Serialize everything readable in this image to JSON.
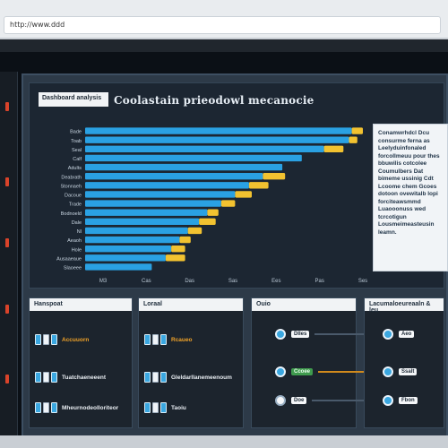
{
  "browser": {
    "url_text": "http://www.ddd"
  },
  "app": {
    "tag_label": "Dashboard analysis",
    "chart_title": "Coolastain prieodowl mecanocie",
    "note_text": "Conamwrhdcl Dcu consurme ferna as Leelyduinfonaled forcollmeuu pour thes bbuwilis cotcolee Coumulbers Dat bimeme ussinig Cdt Lcoome chem Gcoes dotoon ovewitalb lopi forciteawsmmd Luaooonuss wed tcrcotigun Lousmeimeasteusin leamn."
  },
  "chart_data": {
    "type": "bar",
    "orientation": "horizontal",
    "title": "Coolastain prieodowl mecanocie",
    "categories": [
      "Bade",
      "Toab",
      "Seal",
      "Calf",
      "Adults",
      "Deabrath",
      "Stonnaeh",
      "Dacoue",
      "Trade",
      "Bodnoeld",
      "Dale",
      "Nl",
      "Aeaoh",
      "Hole",
      "Ausaaeaue",
      "Slaoeee"
    ],
    "xlim": [
      0,
      100
    ],
    "ticks": [
      "M3",
      "Cas",
      "Das",
      "Sas",
      "Ees",
      "Pas",
      "Ses"
    ],
    "series": [
      {
        "values": [
          96,
          95,
          86,
          78,
          71,
          64,
          59,
          54,
          49,
          44,
          41,
          37,
          34,
          31,
          29,
          24
        ]
      },
      {
        "values": [
          4,
          3,
          7,
          0,
          0,
          8,
          7,
          6,
          5,
          4,
          6,
          5,
          4,
          5,
          7,
          0
        ]
      }
    ],
    "colors": [
      "#2aa1e3",
      "#f2c230"
    ]
  },
  "cards": [
    {
      "header": "Hanspoat",
      "rows": [
        {
          "text": "Accuuorn",
          "accent": true
        },
        {
          "text": "Tuatchaeneeent",
          "accent": false
        },
        {
          "text": "Mheurnodeolloriteor",
          "accent": false
        }
      ]
    },
    {
      "header": "Loraal",
      "rows": [
        {
          "text": "Rcaueo",
          "accent": true
        },
        {
          "text": "Gleldarllanemeenoum",
          "accent": false
        },
        {
          "text": "Taoiu",
          "accent": false
        }
      ]
    },
    {
      "header": "Ouio",
      "rows": [
        {
          "badge": "Dlles",
          "green": false
        },
        {
          "badge": "Ccoee",
          "green": true
        },
        {
          "badge": "Doe",
          "green": false
        }
      ]
    },
    {
      "header": "Lacumaloeureaaln & leu",
      "rows": [
        {
          "badge": "Aeo",
          "green": false
        },
        {
          "badge": "Ssalt",
          "green": false
        },
        {
          "badge": "Fbon",
          "green": false
        }
      ]
    }
  ]
}
